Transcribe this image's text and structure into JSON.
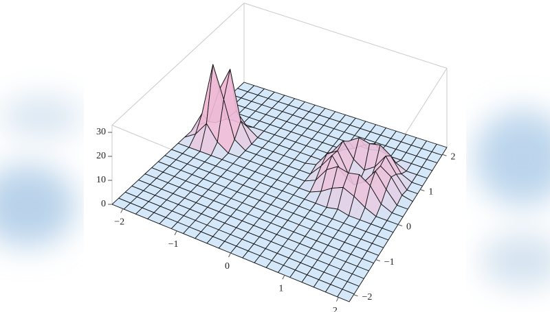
{
  "chart_data": {
    "type": "surface",
    "x": [
      -2.2,
      -1.98,
      -1.76,
      -1.54,
      -1.32,
      -1.1,
      -0.88,
      -0.66,
      -0.44,
      -0.22,
      0,
      0.22,
      0.44,
      0.66,
      0.88,
      1.1,
      1.32,
      1.54,
      1.76,
      1.98,
      2.2
    ],
    "y": [
      -2.2,
      -1.98,
      -1.76,
      -1.54,
      -1.32,
      -1.1,
      -0.88,
      -0.66,
      -0.44,
      -0.22,
      0,
      0.22,
      0.44,
      0.66,
      0.88,
      1.1,
      1.32,
      1.54,
      1.76,
      1.98,
      2.2
    ],
    "z": [
      [
        0,
        0,
        0,
        0,
        0,
        0,
        0,
        0,
        0,
        0,
        0,
        0,
        0,
        0,
        0,
        0,
        0,
        0,
        0,
        0,
        0
      ],
      [
        0,
        0,
        0,
        0,
        0,
        0,
        0,
        0,
        0,
        0,
        0,
        0,
        0,
        0,
        0,
        0,
        0,
        0,
        0,
        0,
        0
      ],
      [
        0,
        0,
        0,
        0,
        0,
        0,
        0,
        0,
        0,
        0,
        0,
        0,
        0,
        0,
        0,
        0,
        0,
        0,
        0,
        0,
        0
      ],
      [
        0,
        0,
        0,
        0,
        0,
        0,
        0,
        0,
        0,
        0,
        0,
        0,
        0,
        0,
        0,
        0,
        0,
        0,
        0,
        0,
        0
      ],
      [
        0,
        0,
        0,
        0,
        0,
        0,
        0,
        0,
        0,
        0,
        0,
        0,
        0,
        0,
        0,
        0,
        0,
        0,
        0,
        0,
        0
      ],
      [
        0,
        0,
        0,
        0,
        0,
        0,
        0,
        0,
        0,
        0,
        0,
        0,
        0,
        0,
        0,
        0,
        0,
        0,
        0,
        0,
        0
      ],
      [
        0,
        0,
        0,
        0,
        0,
        0,
        0,
        0,
        0,
        0,
        0,
        0,
        0,
        0,
        0,
        0,
        0,
        0,
        0,
        0,
        0
      ],
      [
        0,
        0,
        0,
        0,
        0,
        0,
        0,
        0,
        0,
        0,
        0,
        0,
        0,
        0,
        0,
        0,
        0,
        0,
        0,
        0,
        0
      ],
      [
        0,
        0,
        0,
        0,
        0,
        0,
        0,
        0,
        0,
        0,
        0,
        0,
        0,
        0,
        0,
        0,
        0,
        0,
        0,
        0,
        0
      ],
      [
        0,
        0,
        0,
        0,
        0,
        0,
        0,
        0,
        0,
        0,
        0,
        0,
        0,
        0,
        0,
        1,
        0,
        0,
        0,
        0,
        0
      ],
      [
        0,
        0,
        0,
        0,
        0,
        0,
        0,
        0,
        0,
        0,
        0,
        0,
        0,
        2,
        5,
        7,
        5,
        2,
        0,
        0,
        0
      ],
      [
        0,
        3,
        9,
        3,
        0,
        0,
        0,
        0,
        0,
        0,
        0,
        0,
        2,
        8,
        11,
        10,
        11,
        8,
        2,
        0,
        0
      ],
      [
        0,
        9,
        31,
        18,
        3,
        0,
        0,
        0,
        0,
        0,
        0,
        0,
        5,
        11,
        5,
        2,
        5,
        11,
        5,
        0,
        0
      ],
      [
        0,
        3,
        18,
        28,
        8,
        0,
        0,
        0,
        0,
        0,
        0,
        1,
        7,
        10,
        2,
        0,
        2,
        10,
        7,
        1,
        0
      ],
      [
        0,
        0,
        3,
        8,
        3,
        0,
        0,
        0,
        0,
        0,
        0,
        0,
        5,
        11,
        5,
        2,
        5,
        11,
        5,
        0,
        0
      ],
      [
        0,
        0,
        0,
        0,
        0,
        0,
        0,
        0,
        0,
        0,
        0,
        0,
        2,
        8,
        11,
        10,
        11,
        8,
        2,
        0,
        0
      ],
      [
        0,
        0,
        0,
        0,
        0,
        0,
        0,
        0,
        0,
        0,
        0,
        0,
        0,
        2,
        5,
        7,
        5,
        2,
        0,
        0,
        0
      ],
      [
        0,
        0,
        0,
        0,
        0,
        0,
        0,
        0,
        0,
        0,
        0,
        0,
        0,
        0,
        0,
        1,
        0,
        0,
        0,
        0,
        0
      ],
      [
        0,
        0,
        0,
        0,
        0,
        0,
        0,
        0,
        0,
        0,
        0,
        0,
        0,
        0,
        0,
        0,
        0,
        0,
        0,
        0,
        0
      ],
      [
        0,
        0,
        0,
        0,
        0,
        0,
        0,
        0,
        0,
        0,
        0,
        0,
        0,
        0,
        0,
        0,
        0,
        0,
        0,
        0,
        0
      ],
      [
        0,
        0,
        0,
        0,
        0,
        0,
        0,
        0,
        0,
        0,
        0,
        0,
        0,
        0,
        0,
        0,
        0,
        0,
        0,
        0,
        0
      ]
    ],
    "xlim": [
      -2.2,
      2.2
    ],
    "ylim": [
      -2.2,
      2.2
    ],
    "zlim": [
      0,
      33
    ],
    "xticks": [
      {
        "value": -2,
        "label": "−2"
      },
      {
        "value": -1,
        "label": "−1"
      },
      0,
      1,
      2
    ],
    "yticks": [
      {
        "value": -2,
        "label": "−2"
      },
      {
        "value": -1,
        "label": "−1"
      },
      0,
      1,
      2
    ],
    "zticks": [
      0,
      10,
      20,
      30
    ],
    "color": "#cfe5f8",
    "peak_color": "#eebad6"
  }
}
